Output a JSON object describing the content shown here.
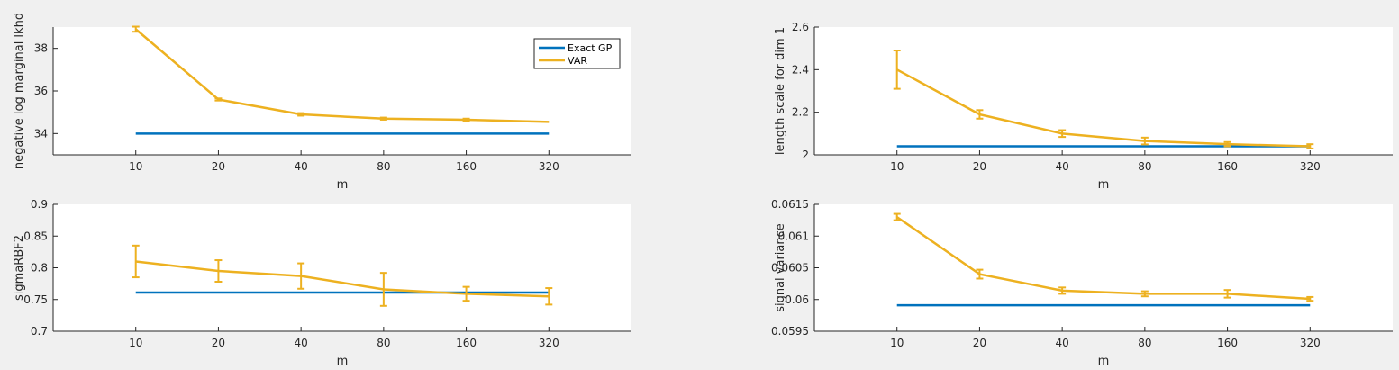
{
  "colors": {
    "exact": "#0072BD",
    "var": "#EDB120",
    "axis": "#262626",
    "background": "#f0f0f0",
    "plot_bg": "#ffffff"
  },
  "legend": {
    "entries": [
      "Exact GP",
      "VAR"
    ],
    "location": "top-right",
    "subplot": 0
  },
  "chart_data": [
    {
      "type": "line",
      "title": "",
      "xlabel": "m",
      "ylabel": "negative log marginal lkhd",
      "categories": [
        "10",
        "20",
        "40",
        "80",
        "160",
        "320"
      ],
      "xlim": [
        0,
        7
      ],
      "ylim": [
        33,
        39
      ],
      "yticks": [
        "34",
        "36",
        "38"
      ],
      "grid": false,
      "series": [
        {
          "name": "Exact GP",
          "values": [
            34.0,
            34.0,
            34.0,
            34.0,
            34.0,
            34.0
          ]
        },
        {
          "name": "VAR",
          "values": [
            38.9,
            35.6,
            34.9,
            34.7,
            34.65,
            34.55
          ],
          "errors": [
            0.12,
            0.05,
            0.06,
            0.05,
            0.05,
            0
          ]
        }
      ]
    },
    {
      "type": "line",
      "title": "",
      "xlabel": "m",
      "ylabel": "length scale for dim 1",
      "categories": [
        "10",
        "20",
        "40",
        "80",
        "160",
        "320"
      ],
      "xlim": [
        0,
        7
      ],
      "ylim": [
        2,
        2.6
      ],
      "yticks": [
        "2",
        "2.2",
        "2.4",
        "2.6"
      ],
      "grid": false,
      "series": [
        {
          "name": "Exact GP",
          "values": [
            2.04,
            2.04,
            2.04,
            2.04,
            2.04,
            2.04
          ]
        },
        {
          "name": "VAR",
          "values": [
            2.4,
            2.19,
            2.1,
            2.065,
            2.05,
            2.04
          ],
          "errors": [
            0.09,
            0.02,
            0.016,
            0.016,
            0.01,
            0.01
          ]
        }
      ]
    },
    {
      "type": "line",
      "title": "",
      "xlabel": "m",
      "ylabel": "sigmaRBF2",
      "categories": [
        "10",
        "20",
        "40",
        "80",
        "160",
        "320"
      ],
      "xlim": [
        0,
        7
      ],
      "ylim": [
        0.7,
        0.9
      ],
      "yticks": [
        "0.7",
        "0.75",
        "0.8",
        "0.85",
        "0.9"
      ],
      "grid": false,
      "series": [
        {
          "name": "Exact GP",
          "values": [
            0.761,
            0.761,
            0.761,
            0.761,
            0.761,
            0.761
          ]
        },
        {
          "name": "VAR",
          "values": [
            0.81,
            0.795,
            0.787,
            0.766,
            0.759,
            0.755
          ],
          "errors": [
            0.025,
            0.017,
            0.02,
            0.026,
            0.011,
            0.013
          ]
        }
      ]
    },
    {
      "type": "line",
      "title": "",
      "xlabel": "m",
      "ylabel": "signal variance",
      "categories": [
        "10",
        "20",
        "40",
        "80",
        "160",
        "320"
      ],
      "xlim": [
        0,
        7
      ],
      "ylim": [
        0.0595,
        0.0615
      ],
      "yticks": [
        "0.0595",
        "0.06",
        "0.0605",
        "0.061",
        "0.0615"
      ],
      "grid": false,
      "series": [
        {
          "name": "Exact GP",
          "values": [
            0.05991,
            0.05991,
            0.05991,
            0.05991,
            0.05991,
            0.05991
          ]
        },
        {
          "name": "VAR",
          "values": [
            0.0613,
            0.0604,
            0.06014,
            0.06009,
            0.06009,
            0.06001
          ],
          "errors": [
            5e-05,
            7e-05,
            5e-05,
            4e-05,
            6e-05,
            3e-05
          ]
        }
      ]
    }
  ]
}
